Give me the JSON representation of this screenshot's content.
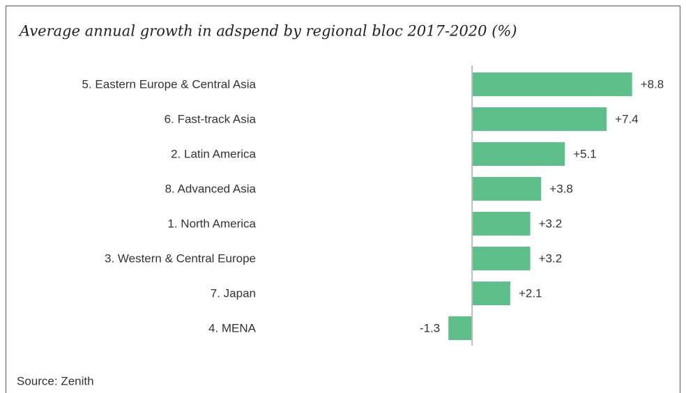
{
  "chart_data": {
    "type": "bar",
    "orientation": "horizontal",
    "title": "Average annual growth in adspend by regional bloc 2017-2020 (%)",
    "categories": [
      "5. Eastern Europe & Central Asia",
      "6. Fast-track Asia",
      "2. Latin America",
      "8. Advanced Asia",
      "1. North America",
      "3. Western & Central Europe",
      "7. Japan",
      "4. MENA"
    ],
    "values": [
      8.8,
      7.4,
      5.1,
      3.8,
      3.2,
      3.2,
      2.1,
      -1.3
    ],
    "value_labels": [
      "+8.8",
      "+7.4",
      "+5.1",
      "+3.8",
      "+3.2",
      "+3.2",
      "+2.1",
      "-1.3"
    ],
    "color": "#5fbf8b",
    "xlim": [
      -2,
      10
    ],
    "source": "Source: Zenith"
  }
}
